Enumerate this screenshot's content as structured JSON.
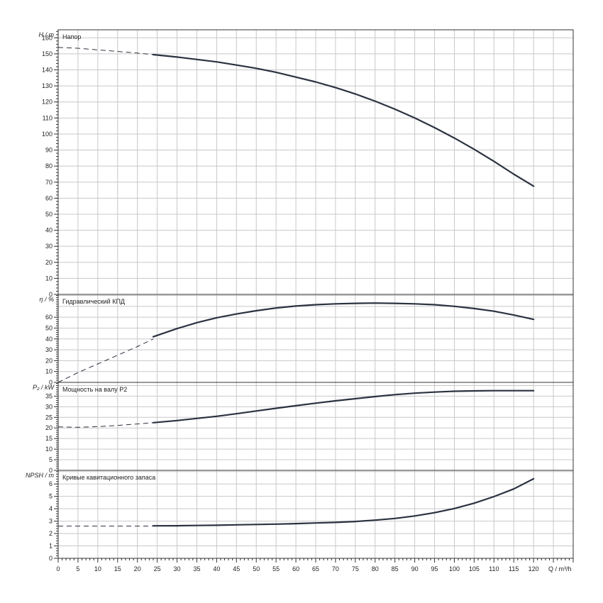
{
  "chart_data": {
    "type": "line",
    "x_axis": {
      "label": "Q / m³/h",
      "range": [
        0,
        130
      ],
      "ticks": [
        0,
        5,
        10,
        15,
        20,
        25,
        30,
        35,
        40,
        45,
        50,
        55,
        60,
        65,
        70,
        75,
        80,
        85,
        90,
        95,
        100,
        105,
        110,
        115,
        120
      ],
      "minor_step": 1,
      "grid_step": 5
    },
    "panels": [
      {
        "id": "head",
        "ylabel": "H / m",
        "title": "Напор",
        "ylim": [
          0,
          165
        ],
        "ticks": [
          0,
          10,
          20,
          30,
          40,
          50,
          60,
          70,
          80,
          90,
          100,
          110,
          120,
          130,
          140,
          150,
          160
        ],
        "grid_step": 10,
        "minor_step": 2,
        "dashed": [
          [
            0,
            154
          ],
          [
            5,
            153.5
          ],
          [
            10,
            152.5
          ],
          [
            15,
            151.5
          ],
          [
            20,
            150.5
          ],
          [
            24,
            149.5
          ]
        ],
        "solid": [
          [
            24,
            149.5
          ],
          [
            30,
            148
          ],
          [
            35,
            146.5
          ],
          [
            40,
            145
          ],
          [
            45,
            143
          ],
          [
            50,
            141
          ],
          [
            55,
            138.5
          ],
          [
            60,
            135.5
          ],
          [
            65,
            132.5
          ],
          [
            70,
            129
          ],
          [
            75,
            125
          ],
          [
            80,
            120.5
          ],
          [
            85,
            115.5
          ],
          [
            90,
            110
          ],
          [
            95,
            104
          ],
          [
            100,
            97.5
          ],
          [
            105,
            90.5
          ],
          [
            110,
            83
          ],
          [
            115,
            75
          ],
          [
            120,
            67.5
          ]
        ]
      },
      {
        "id": "eff",
        "ylabel": "η / %",
        "title": "Гидравлический КПД",
        "ylim": [
          0,
          81
        ],
        "ticks": [
          0,
          10,
          20,
          30,
          40,
          50,
          60
        ],
        "grid_step": 10,
        "minor_step": 2,
        "dashed": [
          [
            0,
            0
          ],
          [
            5,
            9
          ],
          [
            10,
            17
          ],
          [
            15,
            25
          ],
          [
            20,
            33
          ],
          [
            24,
            40
          ]
        ],
        "solid": [
          [
            24,
            42
          ],
          [
            30,
            49.5
          ],
          [
            35,
            55
          ],
          [
            40,
            59.5
          ],
          [
            45,
            63
          ],
          [
            50,
            66
          ],
          [
            55,
            68.5
          ],
          [
            60,
            70.3
          ],
          [
            65,
            71.5
          ],
          [
            70,
            72.3
          ],
          [
            75,
            72.8
          ],
          [
            80,
            73
          ],
          [
            85,
            72.8
          ],
          [
            90,
            72.3
          ],
          [
            95,
            71.5
          ],
          [
            100,
            70
          ],
          [
            105,
            68
          ],
          [
            110,
            65.5
          ],
          [
            115,
            62
          ],
          [
            120,
            58
          ]
        ]
      },
      {
        "id": "power",
        "ylabel": "P₂ / kW",
        "title": "Мощность на валу P2",
        "ylim": [
          0,
          41.5
        ],
        "ticks": [
          0,
          5,
          10,
          15,
          20,
          25,
          30,
          35
        ],
        "grid_step": 5,
        "minor_step": 1,
        "dashed": [
          [
            0,
            20.5
          ],
          [
            5,
            20.3
          ],
          [
            10,
            20.6
          ],
          [
            15,
            21.2
          ],
          [
            20,
            21.9
          ],
          [
            24,
            22.5
          ]
        ],
        "solid": [
          [
            24,
            22.5
          ],
          [
            30,
            23.5
          ],
          [
            35,
            24.5
          ],
          [
            40,
            25.5
          ],
          [
            45,
            26.7
          ],
          [
            50,
            28
          ],
          [
            55,
            29.3
          ],
          [
            60,
            30.5
          ],
          [
            65,
            31.7
          ],
          [
            70,
            32.8
          ],
          [
            75,
            33.8
          ],
          [
            80,
            34.8
          ],
          [
            85,
            35.7
          ],
          [
            90,
            36.4
          ],
          [
            95,
            36.9
          ],
          [
            100,
            37.3
          ],
          [
            105,
            37.5
          ],
          [
            110,
            37.6
          ],
          [
            115,
            37.6
          ],
          [
            120,
            37.6
          ]
        ]
      },
      {
        "id": "npsh",
        "ylabel": "NPSH / m",
        "title": "Кривые кавитационного запаса",
        "ylim": [
          0,
          7.1
        ],
        "ticks": [
          0,
          1,
          2,
          3,
          4,
          5,
          6
        ],
        "grid_step": 1,
        "minor_step": 0.2,
        "dashed": [
          [
            0,
            2.6
          ],
          [
            5,
            2.6
          ],
          [
            10,
            2.6
          ],
          [
            15,
            2.6
          ],
          [
            20,
            2.6
          ],
          [
            24,
            2.6
          ]
        ],
        "solid": [
          [
            24,
            2.62
          ],
          [
            30,
            2.63
          ],
          [
            35,
            2.65
          ],
          [
            40,
            2.67
          ],
          [
            45,
            2.7
          ],
          [
            50,
            2.73
          ],
          [
            55,
            2.76
          ],
          [
            60,
            2.8
          ],
          [
            65,
            2.85
          ],
          [
            70,
            2.9
          ],
          [
            75,
            2.97
          ],
          [
            80,
            3.08
          ],
          [
            85,
            3.22
          ],
          [
            90,
            3.42
          ],
          [
            95,
            3.68
          ],
          [
            100,
            4.02
          ],
          [
            105,
            4.45
          ],
          [
            110,
            4.98
          ],
          [
            115,
            5.6
          ],
          [
            120,
            6.42
          ]
        ]
      }
    ]
  }
}
